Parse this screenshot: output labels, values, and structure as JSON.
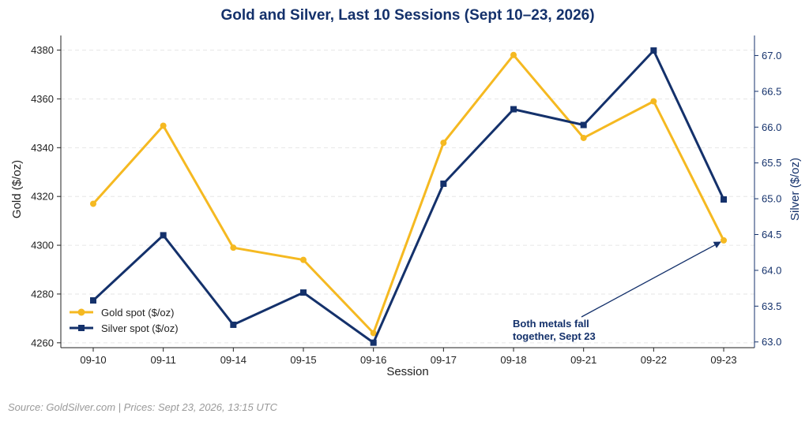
{
  "chart_data": {
    "type": "line",
    "title": "Gold and Silver, Last 10 Sessions (Sept 10–23, 2026)",
    "xlabel": "Session",
    "ylabel_left": "Gold ($/oz)",
    "ylabel_right": "Silver ($/oz)",
    "categories": [
      "09-10",
      "09-11",
      "09-14",
      "09-15",
      "09-16",
      "09-17",
      "09-18",
      "09-21",
      "09-22",
      "09-23"
    ],
    "ylim_left": [
      4258,
      4386
    ],
    "ylim_right": [
      62.92,
      67.28
    ],
    "yticks_left": [
      4260,
      4280,
      4300,
      4320,
      4340,
      4360,
      4380
    ],
    "yticks_right": [
      "63.0",
      "63.5",
      "64.0",
      "64.5",
      "65.0",
      "65.5",
      "66.0",
      "66.5",
      "67.0"
    ],
    "grid": true,
    "legend_position": "bottom-left",
    "series": [
      {
        "name": "Gold spot ($/oz)",
        "axis": "left",
        "color": "#f5b921",
        "marker": "circle",
        "values": [
          4317,
          4349,
          4299,
          4294,
          4264,
          4342,
          4378,
          4344,
          4359,
          4302
        ]
      },
      {
        "name": "Silver spot ($/oz)",
        "axis": "right",
        "color": "#14316b",
        "marker": "square",
        "values": [
          63.58,
          64.49,
          63.24,
          63.69,
          62.99,
          65.21,
          66.25,
          66.03,
          67.07,
          64.99
        ]
      }
    ],
    "annotation": {
      "line1": "Both metals fall",
      "line2": "together, Sept 23",
      "target_category": "09-23",
      "target_series": 0
    }
  },
  "footer": "Source: GoldSilver.com | Prices: Sept 23, 2026, 13:15 UTC"
}
